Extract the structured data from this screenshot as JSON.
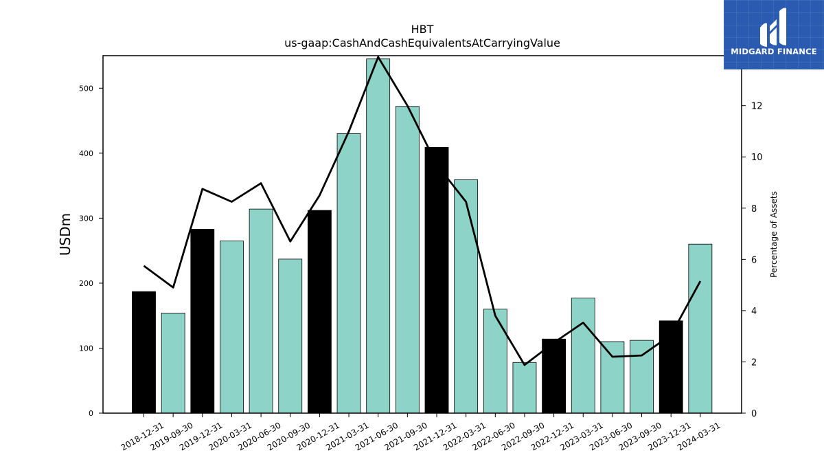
{
  "chart_data": {
    "type": "bar",
    "title": "HBT",
    "subtitle": "us-gaap:CashAndCashEquivalentsAtCarryingValue",
    "ylabel": "USDm",
    "ylabel_right": "Percentage of Assets",
    "ylim": [
      0,
      550
    ],
    "ylim_right": [
      0,
      13.95
    ],
    "yticks": [
      0,
      100,
      200,
      300,
      400,
      500
    ],
    "yticks_right": [
      0,
      2,
      4,
      6,
      8,
      10,
      12
    ],
    "categories": [
      "2018-12-31",
      "2019-09-30",
      "2019-12-31",
      "2020-03-31",
      "2020-06-30",
      "2020-09-30",
      "2020-12-31",
      "2021-03-31",
      "2021-06-30",
      "2021-09-30",
      "2021-12-31",
      "2022-03-31",
      "2022-06-30",
      "2022-09-30",
      "2022-12-31",
      "2023-03-31",
      "2023-06-30",
      "2023-09-30",
      "2023-12-31",
      "2024-03-31"
    ],
    "series": [
      {
        "type": "bar",
        "axis": "left",
        "values": [
          187,
          154,
          283,
          265,
          314,
          237,
          312,
          430,
          545,
          472,
          409,
          359,
          160,
          78,
          114,
          177,
          110,
          112,
          142,
          260
        ]
      },
      {
        "type": "line",
        "axis": "right",
        "values": [
          5.75,
          4.9,
          8.75,
          8.25,
          8.97,
          6.7,
          8.5,
          11.0,
          13.9,
          12.0,
          9.7,
          8.25,
          3.8,
          1.88,
          2.75,
          3.53,
          2.2,
          2.25,
          3.05,
          5.15
        ]
      }
    ],
    "bar_colors": [
      "#000000",
      "#8dd3c7",
      "#000000",
      "#8dd3c7",
      "#8dd3c7",
      "#8dd3c7",
      "#000000",
      "#8dd3c7",
      "#8dd3c7",
      "#8dd3c7",
      "#000000",
      "#8dd3c7",
      "#8dd3c7",
      "#8dd3c7",
      "#000000",
      "#8dd3c7",
      "#8dd3c7",
      "#8dd3c7",
      "#000000",
      "#8dd3c7"
    ],
    "line_color": "#000000",
    "grid": false
  },
  "logo": {
    "text": "MIDGARD FINANCE",
    "background": "#2b5bb0"
  }
}
